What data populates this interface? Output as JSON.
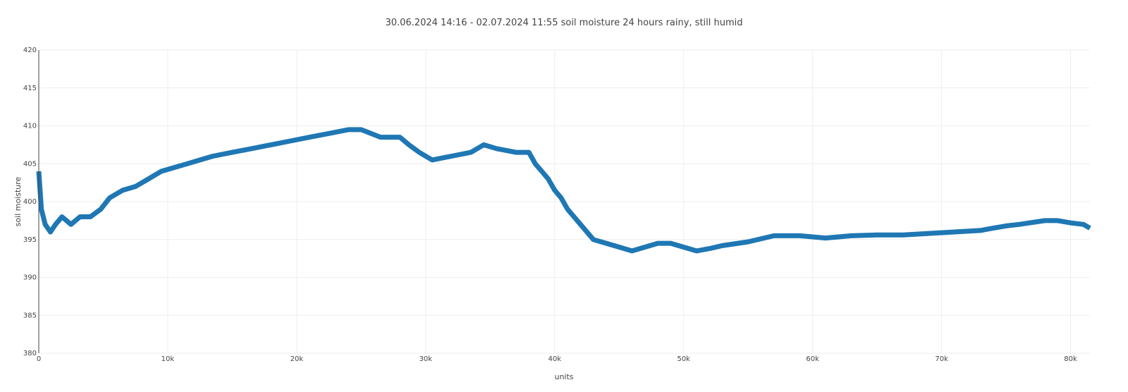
{
  "chart_data": {
    "type": "line",
    "title": "30.06.2024 14:16 - 02.07.2024 11:55 soil moisture 24 hours rainy, still humid",
    "xlabel": "units",
    "ylabel": "soil moisture",
    "xlim": [
      0,
      81500
    ],
    "ylim": [
      380,
      420
    ],
    "x_ticks": [
      {
        "value": 0,
        "label": "0"
      },
      {
        "value": 10000,
        "label": "10k"
      },
      {
        "value": 20000,
        "label": "20k"
      },
      {
        "value": 30000,
        "label": "30k"
      },
      {
        "value": 40000,
        "label": "40k"
      },
      {
        "value": 50000,
        "label": "50k"
      },
      {
        "value": 60000,
        "label": "60k"
      },
      {
        "value": 70000,
        "label": "70k"
      },
      {
        "value": 80000,
        "label": "80k"
      }
    ],
    "y_ticks": [
      {
        "value": 380,
        "label": "380"
      },
      {
        "value": 385,
        "label": "385"
      },
      {
        "value": 390,
        "label": "390"
      },
      {
        "value": 395,
        "label": "395"
      },
      {
        "value": 400,
        "label": "400"
      },
      {
        "value": 405,
        "label": "405"
      },
      {
        "value": 410,
        "label": "410"
      },
      {
        "value": 415,
        "label": "415"
      },
      {
        "value": 420,
        "label": "420"
      }
    ],
    "grid": true,
    "line_color": "#1f77b4",
    "series": [
      {
        "x": [
          0,
          200,
          500,
          900,
          1300,
          1800,
          2500,
          3200,
          4000,
          4800,
          5500,
          6500,
          7500,
          8500,
          9500,
          10500,
          11500,
          12500,
          13500,
          15000,
          16500,
          18000,
          19500,
          21000,
          22500,
          24000,
          25000,
          26500,
          28000,
          28700,
          29500,
          30500,
          32000,
          33500,
          34500,
          35500,
          37000,
          38000,
          38500,
          39000,
          39500,
          40000,
          40500,
          41000,
          41500,
          42000,
          42500,
          43000,
          44000,
          45000,
          46000,
          47000,
          48000,
          49000,
          50000,
          51000,
          52000,
          53000,
          55000,
          57000,
          59000,
          61000,
          63000,
          65000,
          67000,
          69000,
          71000,
          73000,
          74000,
          75000,
          76000,
          78000,
          79000,
          80000,
          81000,
          81500
        ],
        "y": [
          404,
          399,
          397,
          396,
          397,
          398,
          397,
          398,
          398,
          399,
          400.5,
          401.5,
          402,
          403,
          404,
          404.5,
          405,
          405.5,
          406,
          406.5,
          407,
          407.5,
          408,
          408.5,
          409,
          409.5,
          409.5,
          408.5,
          408.5,
          407.5,
          406.5,
          405.5,
          406,
          406.5,
          407.5,
          407,
          406.5,
          406.5,
          405,
          404,
          403,
          401.5,
          400.5,
          399,
          398,
          397,
          396,
          395,
          394.5,
          394,
          393.5,
          394,
          394.5,
          394.5,
          394,
          393.5,
          393.8,
          394.2,
          394.7,
          395.5,
          395.5,
          395.2,
          395.5,
          395.6,
          395.6,
          395.8,
          396,
          396.2,
          396.5,
          396.8,
          397,
          397.5,
          397.5,
          397.2,
          397,
          396.5
        ]
      }
    ]
  }
}
